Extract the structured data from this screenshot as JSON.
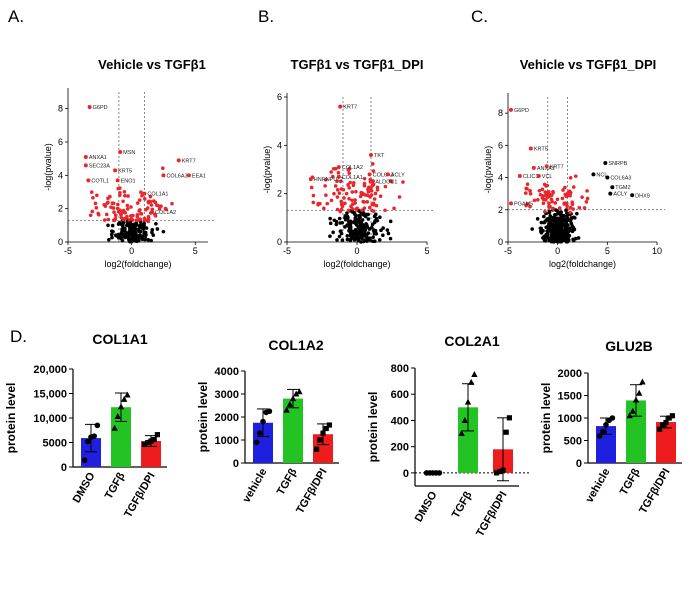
{
  "panels": {
    "A": "A.",
    "B": "B.",
    "C": "C.",
    "D": "D."
  },
  "chart_data": [
    {
      "type": "scatter",
      "panel": "A",
      "title": "Vehicle vs TGFβ1",
      "xlabel": "log2(foldchange)",
      "ylabel": "-log(pvalue)",
      "xlim": [
        -5,
        6
      ],
      "ylim": [
        0,
        9
      ],
      "xticks": [
        -5,
        0,
        5
      ],
      "yticks": [
        0,
        2,
        4,
        6,
        8
      ],
      "thresholds": {
        "fc": [
          -1,
          1
        ],
        "p": 1.3
      },
      "colors": {
        "sig": "#e8262c",
        "ns": "#000000"
      },
      "labeled": [
        {
          "label": "G6PD",
          "x": -3.3,
          "y": 8.1
        },
        {
          "label": "MSN",
          "x": -0.9,
          "y": 5.4
        },
        {
          "label": "ANXA1",
          "x": -3.6,
          "y": 5.1
        },
        {
          "label": "SEC23A",
          "x": -3.6,
          "y": 4.6
        },
        {
          "label": "KRT5",
          "x": -1.3,
          "y": 4.3
        },
        {
          "label": "ENO1",
          "x": -1.1,
          "y": 3.7
        },
        {
          "label": "COTL1",
          "x": -3.4,
          "y": 3.7
        },
        {
          "label": "KRT7",
          "x": 3.7,
          "y": 4.9
        },
        {
          "label": "COL6A3",
          "x": 2.5,
          "y": 4.0
        },
        {
          "label": "EEA1",
          "x": 4.5,
          "y": 4.0
        },
        {
          "label": "COL1A1",
          "x": 1.0,
          "y": 2.9
        },
        {
          "label": "COL1A2",
          "x": 1.6,
          "y": 1.8
        }
      ]
    },
    {
      "type": "scatter",
      "panel": "B",
      "title": "TGFβ1 vs TGFβ1_DPI",
      "xlabel": "log2(foldchange)",
      "ylabel": "-log(pvalue)",
      "xlim": [
        -5,
        5
      ],
      "ylim": [
        0,
        6
      ],
      "xticks": [
        -5,
        0,
        5
      ],
      "yticks": [
        0,
        2,
        4,
        6
      ],
      "thresholds": {
        "fc": [
          -1,
          1
        ],
        "p": 1.3
      },
      "colors": {
        "sig": "#e8262c",
        "ns": "#000000"
      },
      "labeled": [
        {
          "label": "KRT7",
          "x": -1.2,
          "y": 5.6
        },
        {
          "label": "TKT",
          "x": 1.0,
          "y": 3.6
        },
        {
          "label": "COL1A2",
          "x": -1.3,
          "y": 3.1
        },
        {
          "label": "COL6A3",
          "x": 0.9,
          "y": 2.8
        },
        {
          "label": "ACLY",
          "x": 2.2,
          "y": 2.8
        },
        {
          "label": "COL1A1",
          "x": -1.3,
          "y": 2.7
        },
        {
          "label": "HNRNPUL2",
          "x": -3.3,
          "y": 2.6
        },
        {
          "label": "ALDOC1",
          "x": 1.1,
          "y": 2.5
        }
      ]
    },
    {
      "type": "scatter",
      "panel": "C",
      "title": "Vehicle vs TGFβ1_DPI",
      "xlabel": "log2(foldchange)",
      "ylabel": "-log(pvalue)",
      "xlim": [
        -5,
        10
      ],
      "ylim": [
        0,
        9
      ],
      "xticks": [
        -5,
        0,
        5,
        10
      ],
      "yticks": [
        0,
        2,
        4,
        6,
        8
      ],
      "thresholds": {
        "fc": [
          -1,
          1
        ],
        "p": 2.0
      },
      "colors": {
        "sig": "#e8262c",
        "ns": "#000000"
      },
      "labeled": [
        {
          "label": "G6PD",
          "x": -4.7,
          "y": 8.2
        },
        {
          "label": "KRT5",
          "x": -2.7,
          "y": 5.8
        },
        {
          "label": "ANXA1",
          "x": -2.4,
          "y": 4.6
        },
        {
          "label": "KRT7",
          "x": -1.1,
          "y": 4.7
        },
        {
          "label": "CLIC1",
          "x": -3.8,
          "y": 4.1
        },
        {
          "label": "VCL",
          "x": -1.9,
          "y": 4.1
        },
        {
          "label": "PGAM5",
          "x": -4.7,
          "y": 2.4
        },
        {
          "label": "SNRPB",
          "x": 4.8,
          "y": 4.9
        },
        {
          "label": "NCL",
          "x": 3.6,
          "y": 4.2
        },
        {
          "label": "COL6A3",
          "x": 5.0,
          "y": 4.0
        },
        {
          "label": "TGM2",
          "x": 5.5,
          "y": 3.4
        },
        {
          "label": "ACLY",
          "x": 5.3,
          "y": 3.0
        },
        {
          "label": "DHX9",
          "x": 7.5,
          "y": 2.9
        }
      ]
    },
    {
      "type": "bar",
      "panel": "D",
      "title": "COL1A1",
      "ylabel": "protein level",
      "categories": [
        "DMSO",
        "TGFβ",
        "TGFβ/DPI"
      ],
      "values": [
        5900,
        12200,
        5300
      ],
      "errors": [
        2800,
        2900,
        1100
      ],
      "points": [
        [
          1400,
          5200,
          6100,
          6300,
          8500
        ],
        [
          7900,
          10300,
          12300,
          13800,
          14700
        ],
        [
          4600,
          5000,
          5300,
          5600,
          6600
        ]
      ],
      "ylim": [
        0,
        20000
      ],
      "yticks": [
        "0",
        "5000",
        "10,000",
        "15,000",
        "20,000"
      ],
      "ytick_values": [
        0,
        5000,
        10000,
        15000,
        20000
      ],
      "colors": [
        "#1f1fe0",
        "#22c322",
        "#ee1c1c"
      ],
      "markers": [
        "circle",
        "triangle",
        "square"
      ]
    },
    {
      "type": "bar",
      "panel": "D",
      "title": "COL1A2",
      "ylabel": "protein level",
      "categories": [
        "vehicle",
        "TGFβ",
        "TGFβ/DPI"
      ],
      "values": [
        1750,
        2800,
        1250
      ],
      "errors": [
        600,
        400,
        450
      ],
      "points": [
        [
          900,
          1300,
          1800,
          2200,
          2250
        ],
        [
          2300,
          2550,
          2800,
          3000,
          3100
        ],
        [
          600,
          1000,
          1300,
          1500,
          1650
        ]
      ],
      "ylim": [
        0,
        4000
      ],
      "yticks": [
        "0",
        "1000",
        "2000",
        "3000",
        "4000"
      ],
      "ytick_values": [
        0,
        1000,
        2000,
        3000,
        4000
      ],
      "colors": [
        "#1f1fe0",
        "#22c322",
        "#ee1c1c"
      ],
      "markers": [
        "circle",
        "triangle",
        "square"
      ]
    },
    {
      "type": "bar",
      "panel": "D",
      "title": "COL2A1",
      "ylabel": "protein level",
      "categories": [
        "DMSO",
        "TGFβ",
        "TGFβ/DPI"
      ],
      "values": [
        0,
        500,
        180
      ],
      "errors": [
        0,
        180,
        240
      ],
      "points": [
        [
          0,
          0,
          0,
          0,
          0
        ],
        [
          300,
          400,
          540,
          690,
          750
        ],
        [
          0,
          10,
          20,
          310,
          420
        ]
      ],
      "ylim": [
        -100,
        800
      ],
      "yticks": [
        "0",
        "200",
        "400",
        "600",
        "800"
      ],
      "ytick_values": [
        0,
        200,
        400,
        600,
        800
      ],
      "colors": [
        "#1f1fe0",
        "#22c322",
        "#ee1c1c"
      ],
      "markers": [
        "circle",
        "triangle",
        "square"
      ],
      "baseline": "dotted"
    },
    {
      "type": "bar",
      "panel": "D",
      "title": "GLU2B",
      "ylabel": "protein level",
      "categories": [
        "vehicle",
        "TGFβ",
        "TGFβ/DPI"
      ],
      "values": [
        820,
        1390,
        910
      ],
      "errors": [
        180,
        350,
        130
      ],
      "points": [
        [
          600,
          700,
          850,
          950,
          1000
        ],
        [
          1050,
          1150,
          1400,
          1550,
          1800
        ],
        [
          750,
          850,
          900,
          1000,
          1050
        ]
      ],
      "ylim": [
        0,
        2000
      ],
      "yticks": [
        "0",
        "500",
        "1000",
        "1500",
        "2000"
      ],
      "ytick_values": [
        0,
        500,
        1000,
        1500,
        2000
      ],
      "colors": [
        "#1f1fe0",
        "#22c322",
        "#ee1c1c"
      ],
      "markers": [
        "circle",
        "triangle",
        "square"
      ]
    }
  ]
}
